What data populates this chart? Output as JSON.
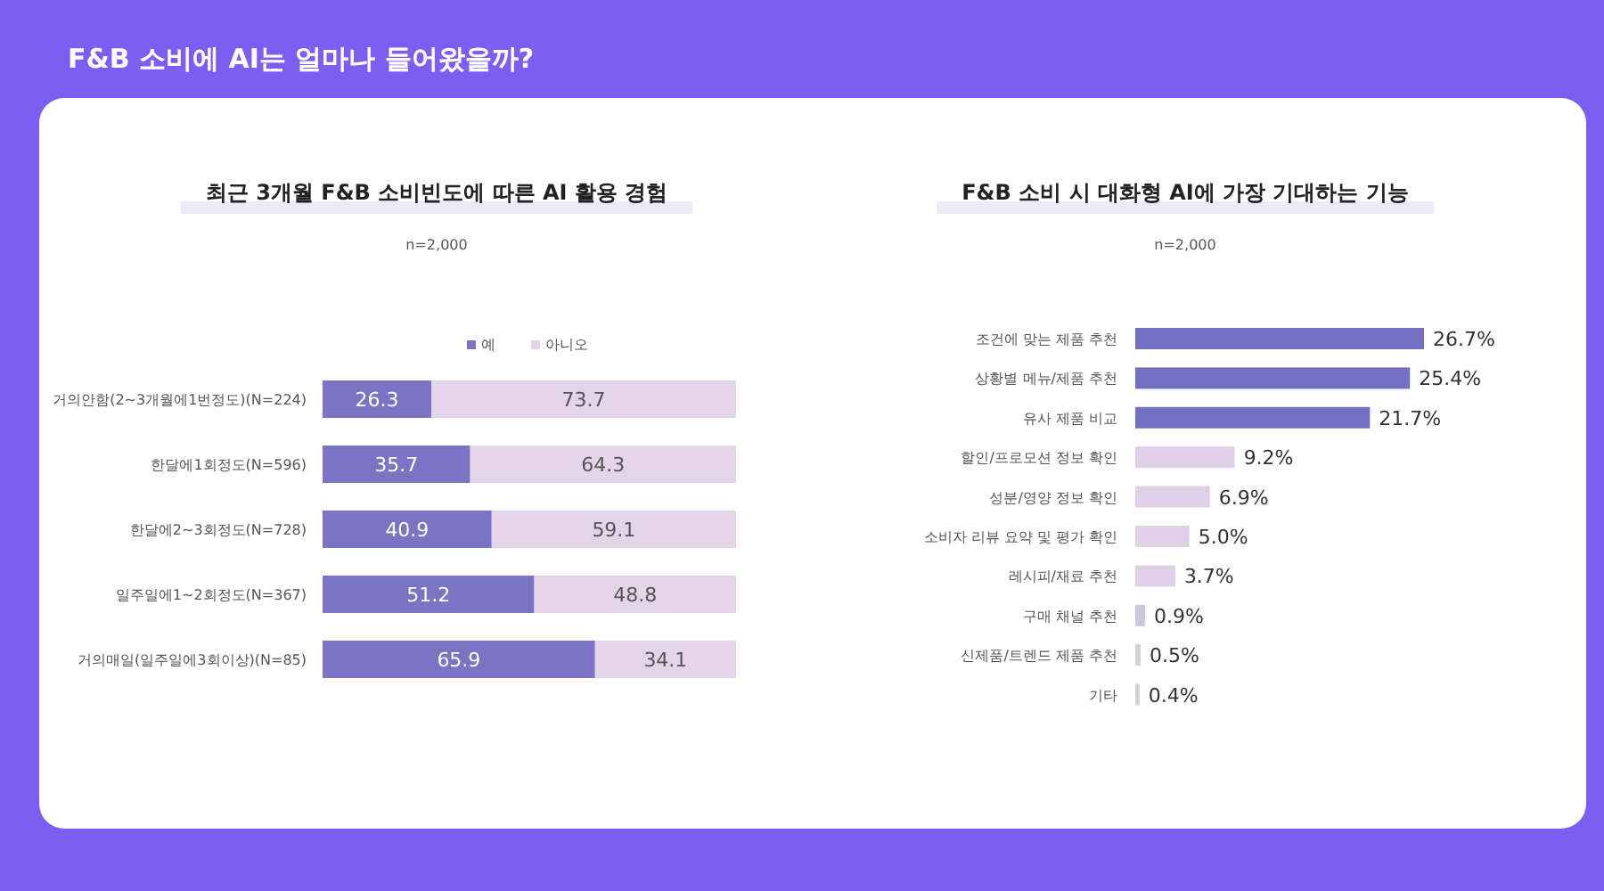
{
  "chart_data": [
    {
      "type": "other",
      "title": "F&B 소비에 AI는 얼마나 들어왔을까?"
    },
    {
      "type": "bar",
      "orientation": "horizontal",
      "stacked": true,
      "title": "최근 3개월 F&B 소비빈도에 따른 AI 활용 경험",
      "subtitle": "n=2,000",
      "legend": "top",
      "data_labels": true,
      "categories": [
        "거의안함(2~3개월에1번정도)(N=224)",
        "한달에1회정도(N=596)",
        "한달에2~3회정도(N=728)",
        "일주일에1~2회정도(N=367)",
        "거의매일(일주일에3회이상)(N=85)"
      ],
      "series": [
        {
          "name": "예",
          "color": "#7b74c4",
          "values": [
            26.3,
            35.7,
            40.9,
            51.2,
            65.9
          ]
        },
        {
          "name": "아니오",
          "color": "#e3d4ea",
          "values": [
            73.7,
            64.3,
            59.1,
            48.8,
            34.1
          ]
        }
      ]
    },
    {
      "type": "bar",
      "orientation": "horizontal",
      "title": "F&B 소비 시 대화형 AI에 가장 기대하는 기능",
      "subtitle": "n=2,000",
      "categories": [
        "조건에 맞는 제품 추천",
        "상황별 메뉴/제품 추천",
        "유사 제품 비교",
        "할인/프로모션 정보 확인",
        "성분/영양 정보 확인",
        "소비자 리뷰 요약 및 평가 확인",
        "레시피/재료 추천",
        "구매 채널 추천",
        "신제품/트렌드 제품 추천",
        "기타"
      ],
      "values": [
        26.7,
        25.4,
        21.7,
        9.2,
        6.9,
        5.0,
        3.7,
        0.9,
        0.5,
        0.4
      ],
      "colors": [
        "#7571c2",
        "#7571c2",
        "#7571c2",
        "#e0d0e7",
        "#e0d0e7",
        "#e0d0e7",
        "#e0d0e7",
        "#c9c9dd",
        "#d2d2da",
        "#d2d2da"
      ],
      "value_labels": [
        "26.7%",
        "25.4%",
        "21.7%",
        "9.2%",
        "6.9%",
        "5.0%",
        "3.7%",
        "0.9%",
        "0.5%",
        "0.4%"
      ]
    }
  ]
}
